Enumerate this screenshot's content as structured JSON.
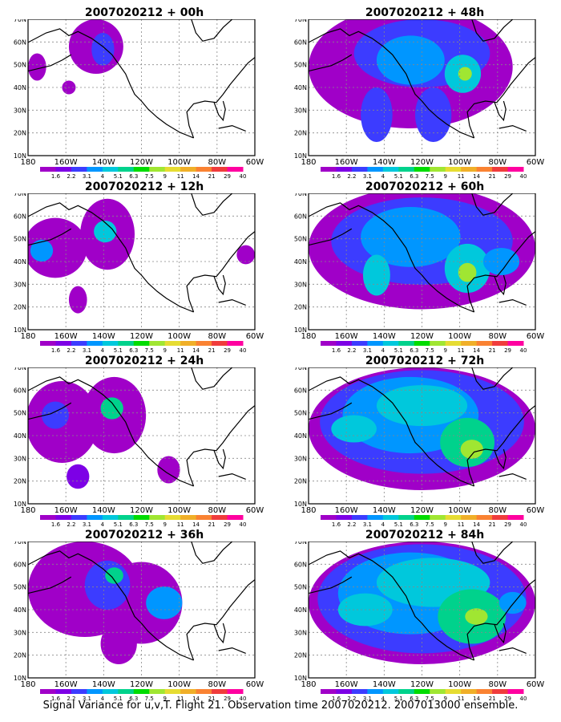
{
  "figure": {
    "caption": "Signal Variance for u,v,T. Flight 21. Observation time 2007020212. 2007013000 ensemble."
  },
  "axes": {
    "lat_labels": [
      "10N",
      "20N",
      "30N",
      "40N",
      "50N",
      "60N",
      "70N"
    ],
    "lon_labels": [
      "180",
      "160W",
      "140W",
      "120W",
      "100W",
      "80W",
      "60W"
    ]
  },
  "colorbar": {
    "labels": [
      "1.6",
      "2.2",
      "3.1",
      "4",
      "5.1",
      "6.3",
      "7.5",
      "9",
      "11",
      "14",
      "21",
      "29",
      "40"
    ],
    "colors": [
      "#a000c8",
      "#7d00e6",
      "#3c3cff",
      "#0096ff",
      "#00c8dc",
      "#00d28c",
      "#00dc00",
      "#a0e632",
      "#e6dc32",
      "#f0af28",
      "#fa8232",
      "#f03c3c",
      "#ff00a0"
    ]
  },
  "panels": [
    {
      "title": "2007020212 + 00h",
      "level": 0
    },
    {
      "title": "2007020212 + 48h",
      "level": 4
    },
    {
      "title": "2007020212 + 12h",
      "level": 1
    },
    {
      "title": "2007020212 + 60h",
      "level": 5
    },
    {
      "title": "2007020212 + 24h",
      "level": 2
    },
    {
      "title": "2007020212 + 72h",
      "level": 6
    },
    {
      "title": "2007020212 + 36h",
      "level": 3
    },
    {
      "title": "2007020212 + 84h",
      "level": 7
    }
  ]
}
